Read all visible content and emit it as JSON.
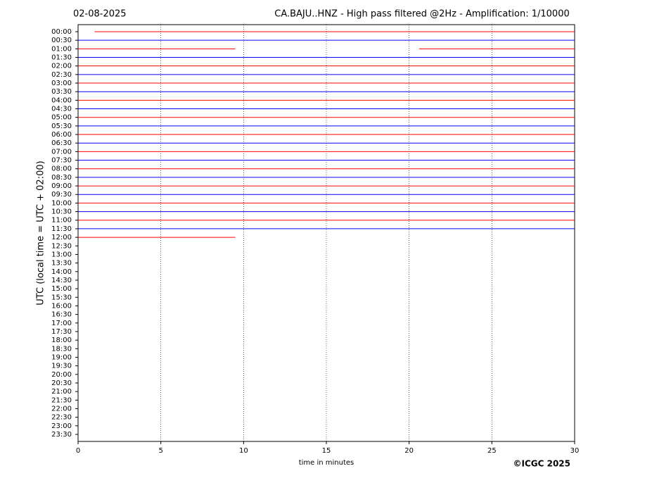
{
  "chart_data": {
    "type": "helicorder",
    "date": "02-08-2025",
    "title": "CA.BAJU..HNZ - High pass filtered @2Hz - Amplification: 1/10000",
    "y_label": "UTC (local time = UTC + 02:00)",
    "x_label": "time in minutes",
    "credit": "©ICGC 2025",
    "xlim": [
      0,
      30
    ],
    "xticks": [
      0,
      5,
      10,
      15,
      20,
      25,
      30
    ],
    "grid": true,
    "colors": [
      "#ff0000",
      "#0000ff"
    ],
    "categories": [
      "00:00",
      "00:30",
      "01:00",
      "01:30",
      "02:00",
      "02:30",
      "03:00",
      "03:30",
      "04:00",
      "04:30",
      "05:00",
      "05:30",
      "06:00",
      "06:30",
      "07:00",
      "07:30",
      "08:00",
      "08:30",
      "09:00",
      "09:30",
      "10:00",
      "10:30",
      "11:00",
      "11:30",
      "12:00",
      "12:30",
      "13:00",
      "13:30",
      "14:00",
      "14:30",
      "15:00",
      "15:30",
      "16:00",
      "16:30",
      "17:00",
      "17:30",
      "18:00",
      "18:30",
      "19:00",
      "19:30",
      "20:00",
      "20:30",
      "21:00",
      "21:30",
      "22:00",
      "22:30",
      "23:00",
      "23:30"
    ],
    "traces": [
      [
        [
          1,
          30
        ]
      ],
      [
        [
          0,
          30
        ]
      ],
      [
        [
          0,
          9.5
        ],
        [
          20.6,
          30
        ]
      ],
      [
        [
          0,
          30
        ]
      ],
      [
        [
          0,
          30
        ]
      ],
      [
        [
          0,
          30
        ]
      ],
      [
        [
          0,
          30
        ]
      ],
      [
        [
          0,
          30
        ]
      ],
      [
        [
          0,
          30
        ]
      ],
      [
        [
          0,
          30
        ]
      ],
      [
        [
          0,
          30
        ]
      ],
      [
        [
          0,
          30
        ]
      ],
      [
        [
          0,
          30
        ]
      ],
      [
        [
          0,
          30
        ]
      ],
      [
        [
          0,
          30
        ]
      ],
      [
        [
          0,
          30
        ]
      ],
      [
        [
          0,
          30
        ]
      ],
      [
        [
          0,
          30
        ]
      ],
      [
        [
          0,
          30
        ]
      ],
      [
        [
          0,
          30
        ]
      ],
      [
        [
          0,
          30
        ]
      ],
      [
        [
          0,
          30
        ]
      ],
      [
        [
          0,
          30
        ]
      ],
      [
        [
          0,
          30
        ]
      ],
      [
        [
          0,
          9.5
        ]
      ],
      [],
      [],
      [],
      [],
      [],
      [],
      [],
      [],
      [],
      [],
      [],
      [],
      [],
      [],
      [],
      [],
      [],
      [],
      [],
      [],
      [],
      [],
      []
    ]
  }
}
